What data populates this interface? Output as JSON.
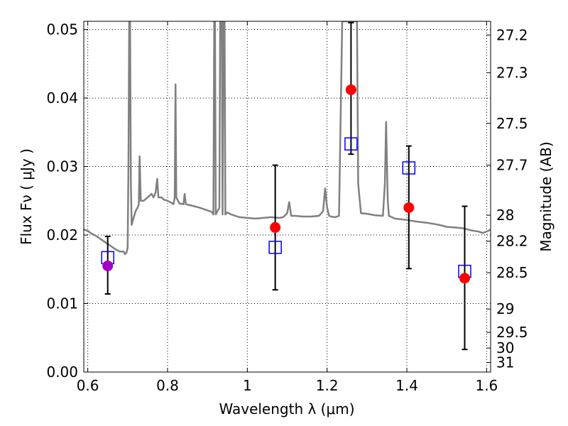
{
  "chart_data": {
    "type": "scatter",
    "xlabel": "Wavelength  λ (μm)",
    "ylabel": "Flux  Fν  ( μJy )",
    "y2label": "Magnitude (AB)",
    "xlim": [
      0.59,
      1.61
    ],
    "ylim": [
      0.0,
      0.0512
    ],
    "x_ticks": [
      0.6,
      0.8,
      1.0,
      1.2,
      1.4,
      1.6
    ],
    "x_tick_labels": [
      "0.6",
      "0.8",
      "1",
      "1.2",
      "1.4",
      "1.6"
    ],
    "y_ticks": [
      0.0,
      0.01,
      0.02,
      0.03,
      0.04,
      0.05
    ],
    "y_tick_labels": [
      "0.00",
      "0.01",
      "0.02",
      "0.03",
      "0.04",
      "0.05"
    ],
    "mag_ticks": [
      {
        "label": "27.2",
        "flux": 0.0492
      },
      {
        "label": "27.3",
        "flux": 0.0437
      },
      {
        "label": "27.5",
        "flux": 0.0363
      },
      {
        "label": "27.7",
        "flux": 0.0302
      },
      {
        "label": "28",
        "flux": 0.0229
      },
      {
        "label": "28.2",
        "flux": 0.0191
      },
      {
        "label": "28.5",
        "flux": 0.0145
      },
      {
        "label": "29",
        "flux": 0.0092
      },
      {
        "label": "29.5",
        "flux": 0.0058
      },
      {
        "label": "30",
        "flux": 0.0035
      },
      {
        "label": "31",
        "flux": 0.0014
      }
    ],
    "grid": true,
    "series": [
      {
        "kind": "line",
        "color": "#808080",
        "points": [
          [
            0.59,
            0.0208
          ],
          [
            0.6,
            0.0206
          ],
          [
            0.61,
            0.0202
          ],
          [
            0.62,
            0.0199
          ],
          [
            0.63,
            0.0195
          ],
          [
            0.64,
            0.0191
          ],
          [
            0.65,
            0.0187
          ],
          [
            0.66,
            0.0183
          ],
          [
            0.67,
            0.0179
          ],
          [
            0.68,
            0.0176
          ],
          [
            0.69,
            0.0176
          ],
          [
            0.693,
            0.0172
          ],
          [
            0.697,
            0.0174
          ],
          [
            0.7,
            0.0182
          ],
          [
            0.702,
            0.03
          ],
          [
            0.704,
            0.0512
          ],
          [
            0.706,
            0.0512
          ],
          [
            0.708,
            0.028
          ],
          [
            0.71,
            0.0215
          ],
          [
            0.715,
            0.0225
          ],
          [
            0.72,
            0.0235
          ],
          [
            0.725,
            0.024
          ],
          [
            0.728,
            0.0245
          ],
          [
            0.73,
            0.0315
          ],
          [
            0.733,
            0.025
          ],
          [
            0.74,
            0.025
          ],
          [
            0.75,
            0.0255
          ],
          [
            0.76,
            0.026
          ],
          [
            0.765,
            0.0255
          ],
          [
            0.77,
            0.0262
          ],
          [
            0.774,
            0.0282
          ],
          [
            0.777,
            0.0255
          ],
          [
            0.785,
            0.0255
          ],
          [
            0.79,
            0.0252
          ],
          [
            0.8,
            0.025
          ],
          [
            0.81,
            0.0247
          ],
          [
            0.815,
            0.0245
          ],
          [
            0.818,
            0.0255
          ],
          [
            0.82,
            0.042
          ],
          [
            0.822,
            0.0255
          ],
          [
            0.83,
            0.0246
          ],
          [
            0.84,
            0.0245
          ],
          [
            0.843,
            0.026
          ],
          [
            0.846,
            0.0245
          ],
          [
            0.86,
            0.0243
          ],
          [
            0.88,
            0.024
          ],
          [
            0.9,
            0.0236
          ],
          [
            0.91,
            0.0234
          ],
          [
            0.915,
            0.023
          ],
          [
            0.917,
            0.0512
          ],
          [
            0.919,
            0.0512
          ],
          [
            0.921,
            0.023
          ],
          [
            0.93,
            0.024
          ],
          [
            0.932,
            0.0512
          ],
          [
            0.936,
            0.0512
          ],
          [
            0.938,
            0.023
          ],
          [
            0.94,
            0.0512
          ],
          [
            0.943,
            0.0512
          ],
          [
            0.945,
            0.023
          ],
          [
            0.95,
            0.0233
          ],
          [
            0.96,
            0.023
          ],
          [
            0.97,
            0.0228
          ],
          [
            0.98,
            0.0226
          ],
          [
            1.0,
            0.0225
          ],
          [
            1.02,
            0.0224
          ],
          [
            1.04,
            0.0225
          ],
          [
            1.06,
            0.0226
          ],
          [
            1.08,
            0.0225
          ],
          [
            1.09,
            0.0226
          ],
          [
            1.1,
            0.0232
          ],
          [
            1.105,
            0.0248
          ],
          [
            1.11,
            0.0228
          ],
          [
            1.12,
            0.0228
          ],
          [
            1.14,
            0.0227
          ],
          [
            1.16,
            0.0227
          ],
          [
            1.18,
            0.0228
          ],
          [
            1.19,
            0.0235
          ],
          [
            1.195,
            0.0268
          ],
          [
            1.2,
            0.024
          ],
          [
            1.205,
            0.0228
          ],
          [
            1.21,
            0.0227
          ],
          [
            1.22,
            0.0226
          ],
          [
            1.23,
            0.0228
          ],
          [
            1.238,
            0.0512
          ],
          [
            1.275,
            0.0512
          ],
          [
            1.278,
            0.0275
          ],
          [
            1.285,
            0.0232
          ],
          [
            1.3,
            0.0231
          ],
          [
            1.32,
            0.0229
          ],
          [
            1.34,
            0.0228
          ],
          [
            1.345,
            0.0275
          ],
          [
            1.348,
            0.0365
          ],
          [
            1.352,
            0.025
          ],
          [
            1.355,
            0.0228
          ],
          [
            1.37,
            0.0224
          ],
          [
            1.4,
            0.0222
          ],
          [
            1.42,
            0.022
          ],
          [
            1.45,
            0.0218
          ],
          [
            1.48,
            0.0215
          ],
          [
            1.5,
            0.0212
          ],
          [
            1.52,
            0.0211
          ],
          [
            1.54,
            0.021
          ],
          [
            1.56,
            0.0207
          ],
          [
            1.58,
            0.0205
          ],
          [
            1.59,
            0.0203
          ],
          [
            1.6,
            0.0205
          ],
          [
            1.61,
            0.0208
          ]
        ]
      },
      {
        "kind": "observed",
        "color": "#ff0000",
        "points": [
          {
            "x": 0.65,
            "y": 0.0155,
            "yerr_low": 0.0114,
            "yerr_high": 0.0198,
            "color": "#a400c6"
          },
          {
            "x": 1.07,
            "y": 0.0211,
            "yerr_low": 0.012,
            "yerr_high": 0.0302
          },
          {
            "x": 1.26,
            "y": 0.0412,
            "yerr_low": 0.0318,
            "yerr_high": 0.051
          },
          {
            "x": 1.405,
            "y": 0.024,
            "yerr_low": 0.0151,
            "yerr_high": 0.033
          },
          {
            "x": 1.545,
            "y": 0.0137,
            "yerr_low": 0.0033,
            "yerr_high": 0.0242
          }
        ]
      },
      {
        "kind": "model",
        "color": "#0000ff",
        "points": [
          {
            "x": 0.65,
            "y": 0.0167
          },
          {
            "x": 1.07,
            "y": 0.0182
          },
          {
            "x": 1.26,
            "y": 0.0333
          },
          {
            "x": 1.405,
            "y": 0.0298
          },
          {
            "x": 1.545,
            "y": 0.0147
          }
        ]
      }
    ]
  }
}
